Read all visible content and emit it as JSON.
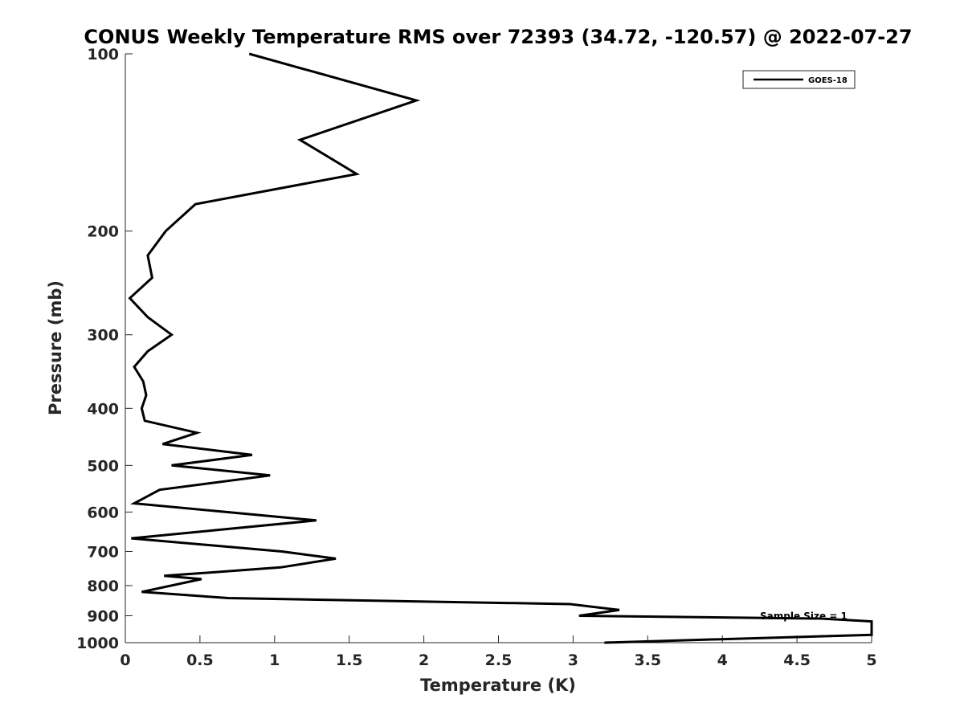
{
  "chart_data": {
    "type": "line",
    "title": "CONUS Weekly Temperature RMS over 72393 (34.72, -120.57) @ 2022-07-27",
    "xlabel": "Temperature (K)",
    "ylabel": "Pressure (mb)",
    "xlim": [
      0,
      5
    ],
    "ylim": [
      1000,
      100
    ],
    "y_scale": "log",
    "y_reversed": true,
    "x_ticks": [
      0,
      0.5,
      1,
      1.5,
      2,
      2.5,
      3,
      3.5,
      4,
      4.5,
      5
    ],
    "x_tick_labels": [
      "0",
      "0.5",
      "1",
      "1.5",
      "2",
      "2.5",
      "3",
      "3.5",
      "4",
      "4.5",
      "5"
    ],
    "y_ticks": [
      100,
      200,
      300,
      400,
      500,
      600,
      700,
      800,
      900,
      1000
    ],
    "y_tick_labels": [
      "100",
      "200",
      "300",
      "400",
      "500",
      "600",
      "700",
      "800",
      "900",
      "1000"
    ],
    "grid": false,
    "legend_position": "top-right",
    "annotation": "Sample Size = 1",
    "series": [
      {
        "name": "GOES-18",
        "color": "#000000",
        "x": [
          0.83,
          1.95,
          1.17,
          1.55,
          0.47,
          0.27,
          0.15,
          0.18,
          0.03,
          0.15,
          0.31,
          0.15,
          0.06,
          0.12,
          0.14,
          0.11,
          0.13,
          0.48,
          0.25,
          0.85,
          0.31,
          0.97,
          0.23,
          0.06,
          1.28,
          0.58,
          0.04,
          1.05,
          1.41,
          1.04,
          0.26,
          0.51,
          0.11,
          0.69,
          2.98,
          3.31,
          3.04,
          4.66,
          5.0,
          5.0,
          4.08,
          3.21
        ],
        "y": [
          100,
          120,
          140,
          160,
          180,
          200,
          220,
          240,
          260,
          280,
          300,
          320,
          340,
          360,
          380,
          400,
          420,
          440,
          460,
          480,
          500,
          520,
          550,
          580,
          620,
          645,
          665,
          700,
          720,
          745,
          770,
          780,
          820,
          840,
          860,
          880,
          900,
          910,
          920,
          970,
          985,
          1000
        ]
      }
    ]
  }
}
